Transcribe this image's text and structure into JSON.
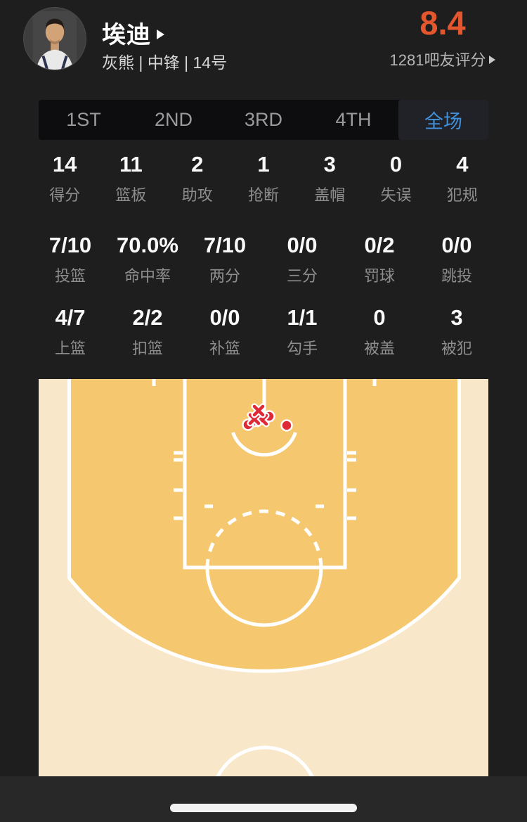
{
  "header": {
    "player_name": "埃迪",
    "team_info": "灰熊 | 中锋 | 14号",
    "rating": "8.4",
    "rating_votes": "1281吧友评分"
  },
  "tabs": [
    {
      "label": "1ST",
      "selected": false
    },
    {
      "label": "2ND",
      "selected": false
    },
    {
      "label": "3RD",
      "selected": false
    },
    {
      "label": "4TH",
      "selected": false
    },
    {
      "label": "全场",
      "selected": true
    }
  ],
  "stats": {
    "rows": [
      {
        "cells": [
          {
            "value": "14",
            "label": "得分"
          },
          {
            "value": "11",
            "label": "篮板"
          },
          {
            "value": "2",
            "label": "助攻"
          },
          {
            "value": "1",
            "label": "抢断"
          },
          {
            "value": "3",
            "label": "盖帽"
          },
          {
            "value": "0",
            "label": "失误"
          },
          {
            "value": "4",
            "label": "犯规"
          }
        ]
      },
      {
        "cells": [
          {
            "value": "7/10",
            "label": "投篮"
          },
          {
            "value": "70.0%",
            "label": "命中率"
          },
          {
            "value": "7/10",
            "label": "两分"
          },
          {
            "value": "0/0",
            "label": "三分"
          },
          {
            "value": "0/2",
            "label": "罚球"
          },
          {
            "value": "0/0",
            "label": "跳投"
          }
        ]
      },
      {
        "cells": [
          {
            "value": "4/7",
            "label": "上篮"
          },
          {
            "value": "2/2",
            "label": "扣篮"
          },
          {
            "value": "0/0",
            "label": "补篮"
          },
          {
            "value": "1/1",
            "label": "勾手"
          },
          {
            "value": "0",
            "label": "被盖"
          },
          {
            "value": "3",
            "label": "被犯"
          }
        ]
      }
    ]
  },
  "shot_chart": {
    "type": "shot-chart",
    "coord_space": "court box 640x565, origin at court top-left, rim near (321,60)",
    "made_shots": [
      [
        315,
        53
      ],
      [
        311,
        56
      ],
      [
        321,
        57
      ],
      [
        306,
        60
      ],
      [
        328,
        53
      ],
      [
        298,
        65
      ],
      [
        353,
        66
      ]
    ],
    "missed_shots": [
      [
        318,
        58
      ],
      [
        307,
        57
      ],
      [
        313,
        45
      ]
    ],
    "colors": {
      "court_inner": "#f5c76e",
      "court_outer": "#f8e7c9",
      "lines": "#ffffff",
      "marker": "#dd2a36"
    }
  },
  "colors": {
    "background": "#1e1e1e",
    "rating_orange": "#e4572e",
    "tab_active_blue": "#4090dc"
  }
}
